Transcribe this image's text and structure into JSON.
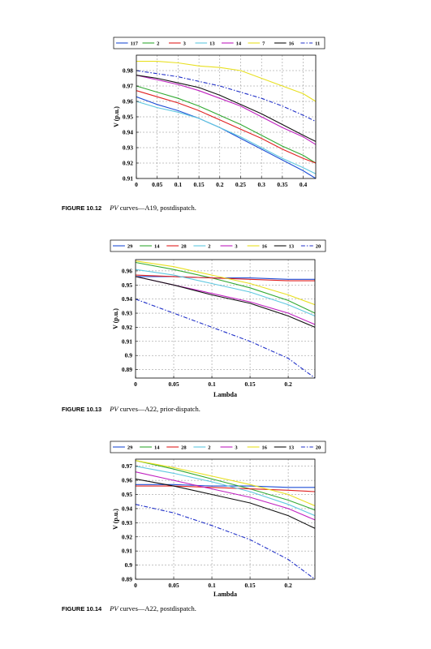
{
  "figures": [
    {
      "caption": {
        "number": "FIGURE 10.12",
        "italic": "PV",
        "text": " curves—A19, postdispatch."
      },
      "chart_data": {
        "type": "line",
        "xlabel": "Lambda",
        "ylabel": "V (p.u.)",
        "xlim": [
          0,
          0.43
        ],
        "ylim": [
          0.91,
          0.99
        ],
        "xticks": [
          0,
          0.05,
          0.1,
          0.15,
          0.2,
          0.25,
          0.3,
          0.35,
          0.4
        ],
        "xtick_labels": [
          "0",
          "0.05",
          "0.1",
          "0.15",
          "0.2",
          "0.25",
          "0.3",
          "0.35",
          "0.4"
        ],
        "yticks": [
          0.91,
          0.92,
          0.93,
          0.94,
          0.95,
          0.96,
          0.97,
          0.98
        ],
        "ytick_labels": [
          "0.91",
          "0.92",
          "0.93",
          "0.94",
          "0.95",
          "0.96",
          "0.97",
          "0.98"
        ],
        "grid": true,
        "legend_position": "top",
        "x": [
          0,
          0.05,
          0.1,
          0.15,
          0.2,
          0.25,
          0.3,
          0.35,
          0.4,
          0.43
        ],
        "series": [
          {
            "name": "117",
            "color": "#1f4fd6",
            "dash": "solid",
            "values": [
              0.963,
              0.958,
              0.954,
              0.949,
              0.943,
              0.936,
              0.929,
              0.922,
              0.915,
              0.91
            ]
          },
          {
            "name": "2",
            "color": "#33aa33",
            "dash": "solid",
            "values": [
              0.97,
              0.966,
              0.962,
              0.957,
              0.951,
              0.945,
              0.938,
              0.931,
              0.925,
              0.92
            ]
          },
          {
            "name": "3",
            "color": "#e02020",
            "dash": "solid",
            "values": [
              0.967,
              0.963,
              0.959,
              0.954,
              0.948,
              0.942,
              0.936,
              0.929,
              0.923,
              0.92
            ]
          },
          {
            "name": "13",
            "color": "#5fc8e0",
            "dash": "solid",
            "values": [
              0.96,
              0.956,
              0.953,
              0.949,
              0.943,
              0.937,
              0.93,
              0.923,
              0.917,
              0.913
            ]
          },
          {
            "name": "14",
            "color": "#c020c0",
            "dash": "solid",
            "values": [
              0.977,
              0.974,
              0.971,
              0.967,
              0.962,
              0.957,
              0.95,
              0.943,
              0.937,
              0.932
            ]
          },
          {
            "name": "7",
            "color": "#e8e020",
            "dash": "solid",
            "values": [
              0.986,
              0.986,
              0.985,
              0.983,
              0.982,
              0.98,
              0.975,
              0.97,
              0.965,
              0.96
            ]
          },
          {
            "name": "16",
            "color": "#111111",
            "dash": "solid",
            "values": [
              0.977,
              0.975,
              0.972,
              0.969,
              0.964,
              0.958,
              0.952,
              0.945,
              0.938,
              0.934
            ]
          },
          {
            "name": "11",
            "color": "#2030c8",
            "dash": "dashdot",
            "values": [
              0.98,
              0.978,
              0.976,
              0.973,
              0.97,
              0.966,
              0.962,
              0.957,
              0.951,
              0.947
            ]
          }
        ]
      }
    },
    {
      "caption": {
        "number": "FIGURE 10.13",
        "italic": "PV",
        "text": " curves—A22, prior-dispatch."
      },
      "chart_data": {
        "type": "line",
        "xlabel": "Lambda",
        "ylabel": "V (p.u.)",
        "xlim": [
          0,
          0.235
        ],
        "ylim": [
          0.884,
          0.968
        ],
        "xticks": [
          0,
          0.05,
          0.1,
          0.15,
          0.2
        ],
        "xtick_labels": [
          "0",
          "0.05",
          "0.1",
          "0.15",
          "0.2"
        ],
        "yticks": [
          0.89,
          0.9,
          0.91,
          0.92,
          0.93,
          0.94,
          0.95,
          0.96
        ],
        "ytick_labels": [
          "0.89",
          "0.9",
          "0.91",
          "0.92",
          "0.93",
          "0.94",
          "0.95",
          "0.96"
        ],
        "grid": true,
        "legend_position": "top",
        "x": [
          0,
          0.05,
          0.1,
          0.15,
          0.2,
          0.235
        ],
        "series": [
          {
            "name": "29",
            "color": "#1f4fd6",
            "dash": "solid",
            "values": [
              0.956,
              0.956,
              0.955,
              0.955,
              0.954,
              0.954
            ]
          },
          {
            "name": "14",
            "color": "#33aa33",
            "dash": "solid",
            "values": [
              0.966,
              0.961,
              0.955,
              0.948,
              0.939,
              0.93
            ]
          },
          {
            "name": "28",
            "color": "#e02020",
            "dash": "solid",
            "values": [
              0.957,
              0.956,
              0.955,
              0.954,
              0.953,
              0.953
            ]
          },
          {
            "name": "2",
            "color": "#5fc8e0",
            "dash": "solid",
            "values": [
              0.961,
              0.957,
              0.951,
              0.945,
              0.936,
              0.928
            ]
          },
          {
            "name": "3",
            "color": "#c020c0",
            "dash": "solid",
            "values": [
              0.956,
              0.95,
              0.944,
              0.938,
              0.93,
              0.922
            ]
          },
          {
            "name": "16",
            "color": "#e8e020",
            "dash": "solid",
            "values": [
              0.967,
              0.963,
              0.957,
              0.951,
              0.943,
              0.936
            ]
          },
          {
            "name": "13",
            "color": "#111111",
            "dash": "solid",
            "values": [
              0.956,
              0.95,
              0.943,
              0.937,
              0.928,
              0.92
            ]
          },
          {
            "name": "20",
            "color": "#2030c8",
            "dash": "dashdot",
            "values": [
              0.94,
              0.93,
              0.92,
              0.91,
              0.898,
              0.884
            ]
          }
        ]
      }
    },
    {
      "caption": {
        "number": "FIGURE 10.14",
        "italic": "PV",
        "text": " curves—A22, postdispatch."
      },
      "chart_data": {
        "type": "line",
        "xlabel": "Lambda",
        "ylabel": "V (p.u.)",
        "xlim": [
          0,
          0.235
        ],
        "ylim": [
          0.89,
          0.975
        ],
        "xticks": [
          0,
          0.05,
          0.1,
          0.15,
          0.2
        ],
        "xtick_labels": [
          "0",
          "0.05",
          "0.1",
          "0.15",
          "0.2"
        ],
        "yticks": [
          0.89,
          0.9,
          0.91,
          0.92,
          0.93,
          0.94,
          0.95,
          0.96,
          0.97
        ],
        "ytick_labels": [
          "0.89",
          "0.9",
          "0.91",
          "0.92",
          "0.93",
          "0.94",
          "0.95",
          "0.96",
          "0.97"
        ],
        "grid": true,
        "legend_position": "top",
        "x": [
          0,
          0.05,
          0.1,
          0.15,
          0.2,
          0.235
        ],
        "series": [
          {
            "name": "29",
            "color": "#1f4fd6",
            "dash": "solid",
            "values": [
              0.957,
              0.957,
              0.956,
              0.956,
              0.955,
              0.955
            ]
          },
          {
            "name": "14",
            "color": "#33aa33",
            "dash": "solid",
            "values": [
              0.974,
              0.968,
              0.961,
              0.954,
              0.946,
              0.939
            ]
          },
          {
            "name": "28",
            "color": "#e02020",
            "dash": "solid",
            "values": [
              0.956,
              0.956,
              0.955,
              0.954,
              0.953,
              0.952
            ]
          },
          {
            "name": "2",
            "color": "#5fc8e0",
            "dash": "solid",
            "values": [
              0.97,
              0.965,
              0.959,
              0.952,
              0.943,
              0.935
            ]
          },
          {
            "name": "3",
            "color": "#c020c0",
            "dash": "solid",
            "values": [
              0.966,
              0.96,
              0.954,
              0.948,
              0.94,
              0.932
            ]
          },
          {
            "name": "16",
            "color": "#e8e020",
            "dash": "solid",
            "values": [
              0.974,
              0.969,
              0.963,
              0.957,
              0.95,
              0.942
            ]
          },
          {
            "name": "13",
            "color": "#111111",
            "dash": "solid",
            "values": [
              0.961,
              0.956,
              0.95,
              0.944,
              0.935,
              0.926
            ]
          },
          {
            "name": "20",
            "color": "#2030c8",
            "dash": "dashdot",
            "values": [
              0.943,
              0.937,
              0.928,
              0.918,
              0.904,
              0.89
            ]
          }
        ]
      }
    }
  ]
}
